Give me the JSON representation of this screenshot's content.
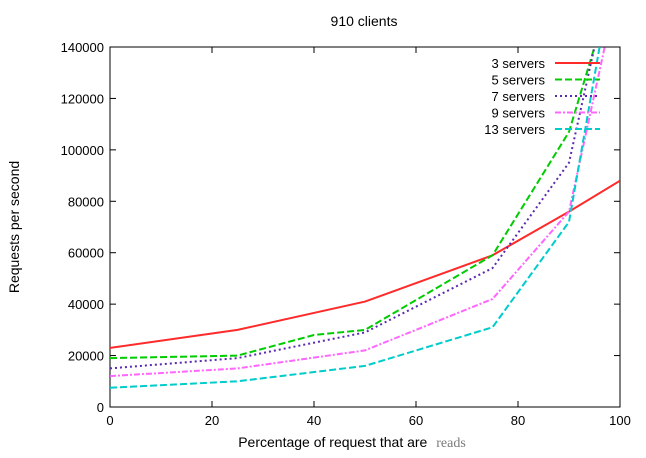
{
  "chart_data": {
    "type": "line",
    "title": "910 clients",
    "xlabel_main": "Percentage of request that are",
    "xlabel_suffix": "reads",
    "ylabel": "Requests per second",
    "xlim": [
      0,
      100
    ],
    "ylim": [
      0,
      140000
    ],
    "xticks": [
      0,
      20,
      40,
      60,
      80,
      100
    ],
    "yticks": [
      0,
      20000,
      40000,
      60000,
      80000,
      100000,
      120000,
      140000
    ],
    "grid": false,
    "legend_position": "top-right",
    "series": [
      {
        "name": "3 servers",
        "color": "#ff2a2a",
        "dash": "solid",
        "x": [
          0,
          25,
          50,
          75,
          90,
          100
        ],
        "y": [
          23000,
          30000,
          41000,
          59000,
          76000,
          88000
        ]
      },
      {
        "name": "5 servers",
        "color": "#00cc00",
        "dash": "dashed",
        "x": [
          0,
          25,
          40,
          50,
          75,
          90,
          95
        ],
        "y": [
          19000,
          20000,
          28000,
          30000,
          59000,
          107000,
          140000
        ]
      },
      {
        "name": "7 servers",
        "color": "#5a2ab0",
        "dash": "dotted",
        "x": [
          0,
          25,
          50,
          75,
          90,
          95
        ],
        "y": [
          15000,
          19000,
          29000,
          54000,
          95000,
          140000
        ]
      },
      {
        "name": "9 servers",
        "color": "#ff66ff",
        "dash": "dashdot",
        "x": [
          0,
          25,
          50,
          75,
          90,
          97
        ],
        "y": [
          12000,
          15000,
          22000,
          42000,
          76000,
          140000
        ]
      },
      {
        "name": "13 servers",
        "color": "#00cccc",
        "dash": "dashed",
        "x": [
          0,
          25,
          50,
          75,
          90,
          96
        ],
        "y": [
          7500,
          10000,
          16000,
          31000,
          72000,
          140000
        ]
      }
    ]
  }
}
